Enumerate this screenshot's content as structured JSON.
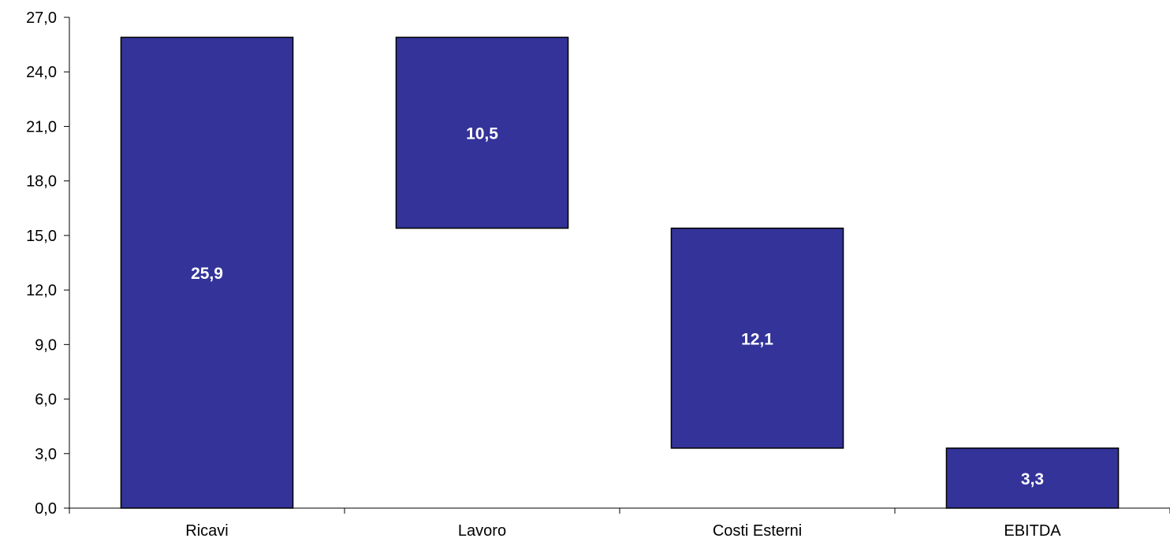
{
  "chart_data": {
    "type": "bar",
    "subtype": "waterfall",
    "categories": [
      "Ricavi",
      "Lavoro",
      "Costi Esterni",
      "EBITDA"
    ],
    "values": [
      25.9,
      10.5,
      12.1,
      3.3
    ],
    "value_labels": [
      "25,9",
      "10,5",
      "12,1",
      "3,3"
    ],
    "bar_ranges": [
      [
        0,
        25.9
      ],
      [
        15.4,
        25.9
      ],
      [
        3.3,
        15.4
      ],
      [
        0,
        3.3
      ]
    ],
    "ylim": [
      0,
      27
    ],
    "yticks": [
      0,
      3,
      6,
      9,
      12,
      15,
      18,
      21,
      24,
      27
    ],
    "ytick_labels": [
      "0,0",
      "3,0",
      "6,0",
      "9,0",
      "12,0",
      "15,0",
      "18,0",
      "21,0",
      "24,0",
      "27,0"
    ],
    "grid": false,
    "legend": "none",
    "bar_color": "#333399",
    "label_color": "#ffffff"
  }
}
